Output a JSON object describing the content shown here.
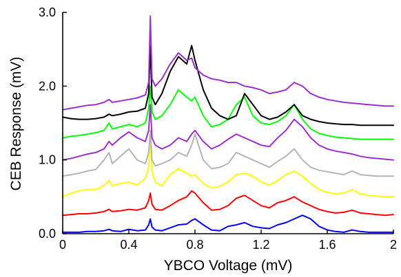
{
  "chart_data": {
    "type": "line",
    "xlabel": "YBCO Voltage (mV)",
    "ylabel": "CEB Response (mV)",
    "xlim": [
      0,
      2
    ],
    "ylim": [
      0,
      3
    ],
    "xticks": [
      {
        "value": 0,
        "label": "0"
      },
      {
        "value": 0.4,
        "label": "0.4"
      },
      {
        "value": 0.8,
        "label": "0.8"
      },
      {
        "value": 1.2,
        "label": "1.2"
      },
      {
        "value": 1.6,
        "label": "1.6"
      },
      {
        "value": 2,
        "label": "2"
      }
    ],
    "yticks": [
      {
        "value": 0,
        "label": "0.0"
      },
      {
        "value": 1,
        "label": "1.0"
      },
      {
        "value": 2,
        "label": "2.0"
      },
      {
        "value": 3,
        "label": "3.0"
      }
    ],
    "legend": false,
    "grid": false,
    "series": [
      {
        "color": "#0000ff",
        "x": [
          0,
          0.05,
          0.1,
          0.15,
          0.2,
          0.25,
          0.28,
          0.3,
          0.35,
          0.4,
          0.45,
          0.5,
          0.52,
          0.53,
          0.54,
          0.56,
          0.6,
          0.65,
          0.7,
          0.75,
          0.78,
          0.8,
          0.85,
          0.9,
          0.95,
          1.0,
          1.05,
          1.1,
          1.15,
          1.2,
          1.25,
          1.3,
          1.35,
          1.4,
          1.45,
          1.5,
          1.55,
          1.6,
          1.65,
          1.7,
          1.75,
          1.8,
          1.85,
          1.9,
          1.95,
          2.0
        ],
        "values": [
          0.02,
          0.02,
          0.02,
          0.03,
          0.03,
          0.04,
          0.06,
          0.04,
          0.03,
          0.06,
          0.04,
          0.05,
          0.12,
          0.2,
          0.09,
          0.05,
          0.04,
          0.08,
          0.12,
          0.13,
          0.18,
          0.2,
          0.12,
          0.05,
          0.04,
          0.1,
          0.12,
          0.15,
          0.1,
          0.08,
          0.07,
          0.12,
          0.15,
          0.2,
          0.25,
          0.2,
          0.1,
          0.05,
          0.03,
          0.02,
          0.05,
          0.03,
          0.02,
          0.02,
          0.02,
          0.02
        ]
      },
      {
        "color": "#ff0000",
        "x": [
          0,
          0.05,
          0.1,
          0.15,
          0.2,
          0.25,
          0.28,
          0.3,
          0.35,
          0.4,
          0.45,
          0.5,
          0.52,
          0.53,
          0.54,
          0.56,
          0.6,
          0.65,
          0.7,
          0.75,
          0.78,
          0.8,
          0.85,
          0.9,
          0.95,
          1.0,
          1.05,
          1.1,
          1.15,
          1.2,
          1.25,
          1.3,
          1.35,
          1.4,
          1.45,
          1.5,
          1.55,
          1.6,
          1.65,
          1.7,
          1.75,
          1.8,
          1.85,
          1.9,
          1.95,
          2.0
        ],
        "values": [
          0.25,
          0.26,
          0.27,
          0.27,
          0.28,
          0.3,
          0.33,
          0.3,
          0.31,
          0.33,
          0.32,
          0.35,
          0.45,
          0.55,
          0.4,
          0.33,
          0.32,
          0.38,
          0.45,
          0.5,
          0.58,
          0.55,
          0.42,
          0.32,
          0.33,
          0.38,
          0.48,
          0.52,
          0.45,
          0.38,
          0.35,
          0.42,
          0.45,
          0.5,
          0.43,
          0.38,
          0.33,
          0.3,
          0.28,
          0.29,
          0.32,
          0.28,
          0.27,
          0.26,
          0.25,
          0.26
        ]
      },
      {
        "color": "#ffff00",
        "x": [
          0,
          0.05,
          0.1,
          0.15,
          0.2,
          0.25,
          0.28,
          0.3,
          0.35,
          0.4,
          0.45,
          0.5,
          0.52,
          0.53,
          0.54,
          0.56,
          0.6,
          0.65,
          0.7,
          0.75,
          0.78,
          0.8,
          0.85,
          0.9,
          0.95,
          1.0,
          1.05,
          1.1,
          1.15,
          1.2,
          1.25,
          1.3,
          1.35,
          1.4,
          1.45,
          1.5,
          1.55,
          1.6,
          1.65,
          1.7,
          1.75,
          1.8,
          1.85,
          1.9,
          1.95,
          2.0
        ],
        "values": [
          0.5,
          0.55,
          0.58,
          0.6,
          0.6,
          0.65,
          0.72,
          0.65,
          0.68,
          0.7,
          0.66,
          0.75,
          0.9,
          1.3,
          0.85,
          0.7,
          0.65,
          0.8,
          0.88,
          0.82,
          0.78,
          0.8,
          0.68,
          0.62,
          0.64,
          0.7,
          0.8,
          0.82,
          0.78,
          0.7,
          0.66,
          0.72,
          0.8,
          0.85,
          0.78,
          0.68,
          0.6,
          0.56,
          0.54,
          0.55,
          0.6,
          0.54,
          0.52,
          0.51,
          0.5,
          0.5
        ]
      },
      {
        "color": "#b4b4b4",
        "x": [
          0,
          0.05,
          0.1,
          0.15,
          0.2,
          0.25,
          0.28,
          0.3,
          0.35,
          0.4,
          0.45,
          0.5,
          0.52,
          0.53,
          0.54,
          0.56,
          0.6,
          0.65,
          0.7,
          0.75,
          0.78,
          0.8,
          0.85,
          0.9,
          0.95,
          1.0,
          1.05,
          1.1,
          1.15,
          1.2,
          1.25,
          1.3,
          1.35,
          1.4,
          1.45,
          1.5,
          1.55,
          1.6,
          1.65,
          1.7,
          1.75,
          1.8,
          1.85,
          1.9,
          1.95,
          2.0
        ],
        "values": [
          0.78,
          0.8,
          0.82,
          0.85,
          0.87,
          1.0,
          1.1,
          0.95,
          1.05,
          1.15,
          1.0,
          0.95,
          1.1,
          1.4,
          1.0,
          0.92,
          0.95,
          1.0,
          1.1,
          1.05,
          1.2,
          1.35,
          1.0,
          0.88,
          0.9,
          0.95,
          1.1,
          1.05,
          1.0,
          0.95,
          0.9,
          0.98,
          1.05,
          1.15,
          1.0,
          0.9,
          0.86,
          0.84,
          0.82,
          0.8,
          0.85,
          0.8,
          0.79,
          0.78,
          0.78,
          0.78
        ]
      },
      {
        "color": "#9b30c8",
        "x": [
          0,
          0.05,
          0.1,
          0.15,
          0.2,
          0.25,
          0.28,
          0.3,
          0.35,
          0.4,
          0.45,
          0.5,
          0.52,
          0.53,
          0.54,
          0.56,
          0.6,
          0.65,
          0.7,
          0.75,
          0.78,
          0.8,
          0.85,
          0.9,
          0.95,
          1.0,
          1.05,
          1.1,
          1.15,
          1.2,
          1.25,
          1.3,
          1.35,
          1.4,
          1.45,
          1.5,
          1.55,
          1.6,
          1.65,
          1.7,
          1.75,
          1.8,
          1.85,
          1.9,
          1.95,
          2.0
        ],
        "values": [
          1.0,
          1.02,
          1.05,
          1.08,
          1.1,
          1.15,
          1.25,
          1.2,
          1.3,
          1.38,
          1.3,
          1.25,
          1.4,
          1.75,
          1.3,
          1.2,
          1.15,
          1.2,
          1.3,
          1.25,
          1.35,
          1.4,
          1.25,
          1.15,
          1.2,
          1.28,
          1.35,
          1.3,
          1.25,
          1.2,
          1.18,
          1.3,
          1.4,
          1.55,
          1.45,
          1.3,
          1.2,
          1.15,
          1.12,
          1.1,
          1.08,
          1.05,
          1.03,
          1.02,
          1.01,
          1.0
        ]
      },
      {
        "color": "#00ff00",
        "x": [
          0,
          0.05,
          0.1,
          0.15,
          0.2,
          0.25,
          0.28,
          0.3,
          0.35,
          0.4,
          0.45,
          0.5,
          0.52,
          0.53,
          0.54,
          0.56,
          0.6,
          0.65,
          0.7,
          0.75,
          0.78,
          0.8,
          0.85,
          0.9,
          0.95,
          1.0,
          1.05,
          1.1,
          1.15,
          1.2,
          1.25,
          1.3,
          1.35,
          1.4,
          1.45,
          1.5,
          1.55,
          1.6,
          1.65,
          1.7,
          1.75,
          1.8,
          1.85,
          1.9,
          1.95,
          2.0
        ],
        "values": [
          1.3,
          1.32,
          1.33,
          1.35,
          1.37,
          1.4,
          1.5,
          1.42,
          1.45,
          1.48,
          1.45,
          1.5,
          1.7,
          2.0,
          1.65,
          1.55,
          1.6,
          1.75,
          1.95,
          1.85,
          1.8,
          1.85,
          1.6,
          1.45,
          1.48,
          1.55,
          1.75,
          1.85,
          1.6,
          1.5,
          1.48,
          1.52,
          1.6,
          1.75,
          1.55,
          1.42,
          1.36,
          1.33,
          1.31,
          1.3,
          1.29,
          1.28,
          1.28,
          1.28,
          1.28,
          1.28
        ]
      },
      {
        "color": "#000000",
        "x": [
          0,
          0.05,
          0.1,
          0.15,
          0.2,
          0.25,
          0.28,
          0.3,
          0.35,
          0.4,
          0.45,
          0.5,
          0.52,
          0.53,
          0.54,
          0.56,
          0.6,
          0.65,
          0.7,
          0.75,
          0.78,
          0.8,
          0.85,
          0.9,
          0.95,
          1.0,
          1.05,
          1.1,
          1.15,
          1.2,
          1.25,
          1.3,
          1.35,
          1.4,
          1.45,
          1.5,
          1.55,
          1.6,
          1.65,
          1.7,
          1.75,
          1.8,
          1.85,
          1.9,
          1.95,
          2.0
        ],
        "values": [
          1.58,
          1.56,
          1.55,
          1.55,
          1.56,
          1.58,
          1.62,
          1.6,
          1.62,
          1.65,
          1.66,
          1.7,
          1.9,
          2.55,
          1.85,
          1.75,
          1.9,
          2.2,
          2.4,
          2.3,
          2.55,
          2.35,
          1.95,
          1.7,
          1.6,
          1.55,
          1.6,
          1.9,
          1.75,
          1.6,
          1.55,
          1.58,
          1.65,
          1.75,
          1.6,
          1.55,
          1.52,
          1.5,
          1.49,
          1.48,
          1.48,
          1.47,
          1.47,
          1.47,
          1.47,
          1.47
        ]
      },
      {
        "color": "#9b30c8",
        "x": [
          0,
          0.05,
          0.1,
          0.15,
          0.2,
          0.25,
          0.28,
          0.3,
          0.35,
          0.4,
          0.45,
          0.5,
          0.52,
          0.53,
          0.54,
          0.56,
          0.6,
          0.65,
          0.7,
          0.75,
          0.78,
          0.8,
          0.85,
          0.9,
          0.95,
          1.0,
          1.05,
          1.1,
          1.15,
          1.2,
          1.25,
          1.3,
          1.35,
          1.4,
          1.45,
          1.5,
          1.55,
          1.6,
          1.65,
          1.7,
          1.75,
          1.8,
          1.85,
          1.9,
          1.95,
          2.0
        ],
        "values": [
          1.68,
          1.7,
          1.72,
          1.74,
          1.75,
          1.78,
          1.82,
          1.78,
          1.8,
          1.82,
          1.84,
          1.88,
          2.05,
          2.95,
          2.1,
          2.0,
          2.1,
          2.3,
          2.45,
          2.35,
          2.38,
          2.25,
          2.15,
          2.1,
          2.08,
          2.05,
          2.05,
          2.0,
          1.98,
          1.95,
          1.9,
          1.92,
          1.95,
          2.05,
          2.0,
          1.9,
          1.85,
          1.82,
          1.8,
          1.78,
          1.77,
          1.76,
          1.75,
          1.74,
          1.73,
          1.73
        ]
      }
    ]
  }
}
